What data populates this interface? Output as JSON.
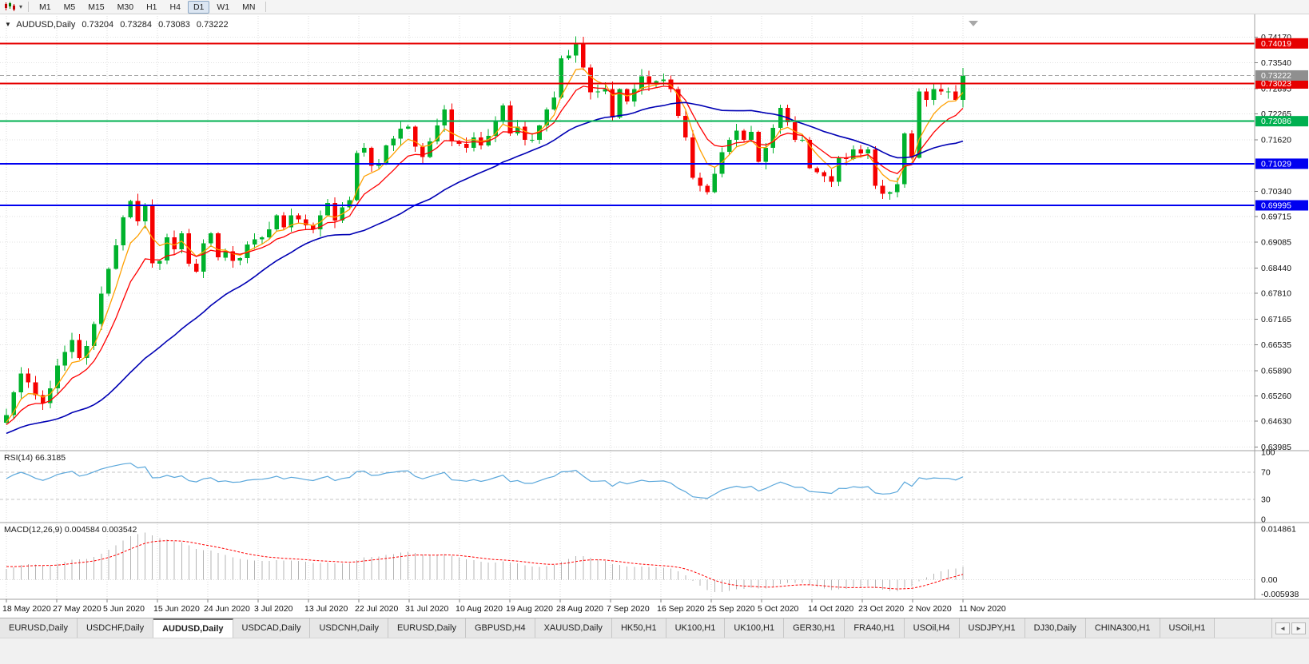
{
  "toolbar": {
    "timeframes": [
      "M1",
      "M5",
      "M15",
      "M30",
      "H1",
      "H4",
      "D1",
      "W1",
      "MN"
    ],
    "active_timeframe": "D1"
  },
  "chart_header": {
    "symbol": "AUDUSD,Daily",
    "open": "0.73204",
    "high": "0.73284",
    "low": "0.73083",
    "close": "0.73222"
  },
  "rsi_panel": {
    "label": "RSI(14) 66.3185",
    "axis_labels": [
      "100",
      "70",
      "30",
      "0"
    ]
  },
  "macd_panel": {
    "label": "MACD(12,26,9) 0.004584 0.003542",
    "axis_labels": [
      "0.014861",
      "0.00",
      "-0.005938"
    ]
  },
  "price_axis": {
    "ticks": [
      "0.74170",
      "0.73540",
      "0.72895",
      "0.72265",
      "0.71620",
      "0.70340",
      "0.69715",
      "0.69085",
      "0.68440",
      "0.67810",
      "0.67165",
      "0.66535",
      "0.65890",
      "0.65260",
      "0.64630",
      "0.63985"
    ]
  },
  "tabs": {
    "items": [
      "EURUSD,Daily",
      "USDCHF,Daily",
      "AUDUSD,Daily",
      "USDCAD,Daily",
      "USDCNH,Daily",
      "EURUSD,Daily",
      "GBPUSD,H4",
      "XAUUSD,Daily",
      "HK50,H1",
      "UK100,H1",
      "UK100,H1",
      "GER30,H1",
      "FRA40,H1",
      "USOil,H4",
      "USDJPY,H1",
      "DJ30,Daily",
      "CHINA300,H1",
      "USOil,H1"
    ],
    "active": "AUDUSD,Daily",
    "nav_left": "◄",
    "nav_right": "►"
  },
  "chart_data": {
    "type": "candlestick",
    "symbol": "AUDUSD",
    "timeframe": "Daily",
    "ohlc_display": {
      "open": 0.73204,
      "high": 0.73284,
      "low": 0.73083,
      "close": 0.73222
    },
    "x_labels": [
      "18 May 2020",
      "27 May 2020",
      "5 Jun 2020",
      "15 Jun 2020",
      "24 Jun 2020",
      "3 Jul 2020",
      "13 Jul 2020",
      "22 Jul 2020",
      "31 Jul 2020",
      "10 Aug 2020",
      "19 Aug 2020",
      "28 Aug 2020",
      "7 Sep 2020",
      "16 Sep 2020",
      "25 Sep 2020",
      "5 Oct 2020",
      "14 Oct 2020",
      "23 Oct 2020",
      "2 Nov 2020",
      "11 Nov 2020"
    ],
    "price_range_view": [
      0.6394,
      0.747
    ],
    "hlines": [
      {
        "price": 0.74019,
        "label": "0.74019",
        "color": "#E60000"
      },
      {
        "price": 0.73023,
        "label": "0.73023",
        "color": "#E60000"
      },
      {
        "price": 0.72086,
        "label": "0.72086",
        "color": "#00B050"
      },
      {
        "price": 0.71029,
        "label": "0.71029",
        "color": "#0000F0"
      },
      {
        "price": 0.69995,
        "label": "0.69995",
        "color": "#0000F0"
      }
    ],
    "bid_line": {
      "price": 0.73222,
      "label": "0.73222",
      "color": "#A8A8A8",
      "badge": "#8F8F8F"
    },
    "candle_colors": {
      "up": "#00B22C",
      "down": "#F60000"
    },
    "pre_closes": [
      0.605,
      0.608,
      0.612,
      0.6095,
      0.614,
      0.618,
      0.6165,
      0.621,
      0.625,
      0.623,
      0.628,
      0.631,
      0.629,
      0.633,
      0.636,
      0.634,
      0.631,
      0.635,
      0.639,
      0.642,
      0.64,
      0.644,
      0.646,
      0.643,
      0.641,
      0.645,
      0.648,
      0.646,
      0.643,
      0.64,
      0.638,
      0.642,
      0.6455,
      0.644,
      0.647,
      0.6455,
      0.643,
      0.646,
      0.648,
      0.6455,
      0.6425,
      0.6445,
      0.6465,
      0.644,
      0.646
    ],
    "closes": [
      0.6478,
      0.6535,
      0.6582,
      0.656,
      0.6528,
      0.6508,
      0.6545,
      0.6601,
      0.6635,
      0.6665,
      0.662,
      0.665,
      0.6705,
      0.678,
      0.6842,
      0.69,
      0.697,
      0.701,
      0.696,
      0.7,
      0.6855,
      0.6862,
      0.692,
      0.689,
      0.693,
      0.6855,
      0.6835,
      0.6905,
      0.693,
      0.687,
      0.6885,
      0.6862,
      0.6868,
      0.6902,
      0.6915,
      0.692,
      0.694,
      0.6975,
      0.6945,
      0.6975,
      0.6965,
      0.695,
      0.694,
      0.6975,
      0.7005,
      0.6962,
      0.6995,
      0.7012,
      0.713,
      0.7142,
      0.7098,
      0.7105,
      0.7148,
      0.7165,
      0.719,
      0.7195,
      0.7145,
      0.712,
      0.7158,
      0.7198,
      0.7238,
      0.7158,
      0.7152,
      0.7142,
      0.7168,
      0.7148,
      0.7172,
      0.7208,
      0.7248,
      0.7178,
      0.7195,
      0.7162,
      0.7162,
      0.7198,
      0.7238,
      0.7268,
      0.7365,
      0.7372,
      0.7402,
      0.7342,
      0.728,
      0.7282,
      0.7288,
      0.7218,
      0.7288,
      0.7258,
      0.7288,
      0.732,
      0.7302,
      0.7308,
      0.7312,
      0.7288,
      0.7222,
      0.7168,
      0.7068,
      0.7048,
      0.7032,
      0.7078,
      0.7132,
      0.7162,
      0.7185,
      0.7162,
      0.7182,
      0.7108,
      0.7142,
      0.7192,
      0.7242,
      0.7206,
      0.7162,
      0.7162,
      0.7092,
      0.7082,
      0.7072,
      0.7058,
      0.7118,
      0.7115,
      0.7138,
      0.7128,
      0.7138,
      0.7048,
      0.7028,
      0.7032,
      0.7052,
      0.7178,
      0.7118,
      0.7282,
      0.7262,
      0.7288,
      0.7282,
      0.7282,
      0.7262,
      0.7322
    ],
    "moving_averages": [
      {
        "type": "ema",
        "period": 5,
        "color": "#FFA000"
      },
      {
        "type": "ema",
        "period": 10,
        "color": "#FF0000"
      },
      {
        "type": "sma",
        "period": 30,
        "color": "#0000B4"
      }
    ],
    "rsi": {
      "period": 14,
      "color": "#5AA7DB",
      "levels": [
        70,
        30
      ],
      "range": [
        0,
        100
      ],
      "current": 66.3185
    },
    "macd": {
      "fast": 12,
      "slow": 26,
      "signal": 9,
      "hist_color": "#B4B4B4",
      "signal_color": "#FF0000",
      "range": [
        -0.0052,
        0.0162
      ],
      "current_main": 0.004584,
      "current_signal": 0.003542
    }
  }
}
